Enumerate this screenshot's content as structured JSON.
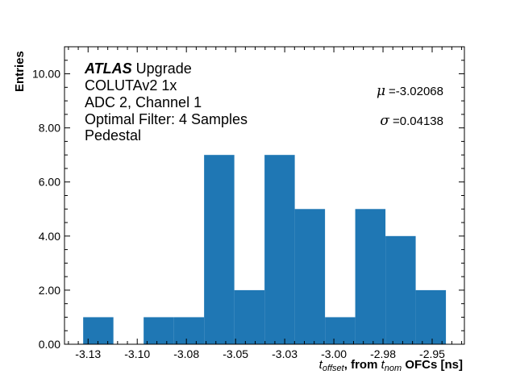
{
  "chart_data": {
    "type": "bar",
    "histogram": true,
    "bin_edges_range": [
      -3.1275,
      -2.943
    ],
    "values": [
      1,
      0,
      1,
      1,
      7,
      2,
      7,
      5,
      1,
      5,
      4,
      2
    ],
    "bar_color": "#1f77b4",
    "xlim": [
      -3.137,
      -2.9336
    ],
    "ylim": [
      0,
      11
    ],
    "x_ticks": [
      -3.125,
      -3.1,
      -3.075,
      -3.05,
      -3.025,
      -3.0,
      -2.975,
      -2.95
    ],
    "x_tick_labels": [
      "-3.13",
      "-3.10",
      "-3.08",
      "-3.05",
      "-3.03",
      "-3.00",
      "-2.98",
      "-2.95"
    ],
    "y_ticks": [
      0,
      2,
      4,
      6,
      8,
      10
    ],
    "y_tick_labels": [
      "0.00",
      "2.00",
      "4.00",
      "6.00",
      "8.00",
      "10.00"
    ],
    "xlabel_parts": {
      "t": "t",
      "sub1": "offset",
      "mid": ", from ",
      "sub2": "nom",
      "end": " OFCs [ns]"
    },
    "ylabel": "Entries",
    "grid": false,
    "annotations": {
      "atlas": "ATLAS",
      "upgrade": " Upgrade",
      "line2": "COLUTAv2 1x",
      "line3": "ADC 2, Channel 1",
      "line4": "Optimal Filter: 4 Samples",
      "line5": "Pedestal",
      "mu_symbol": "μ",
      "mu_value": "=-3.02068",
      "sigma_symbol": "σ",
      "sigma_value": "=0.04138"
    }
  }
}
